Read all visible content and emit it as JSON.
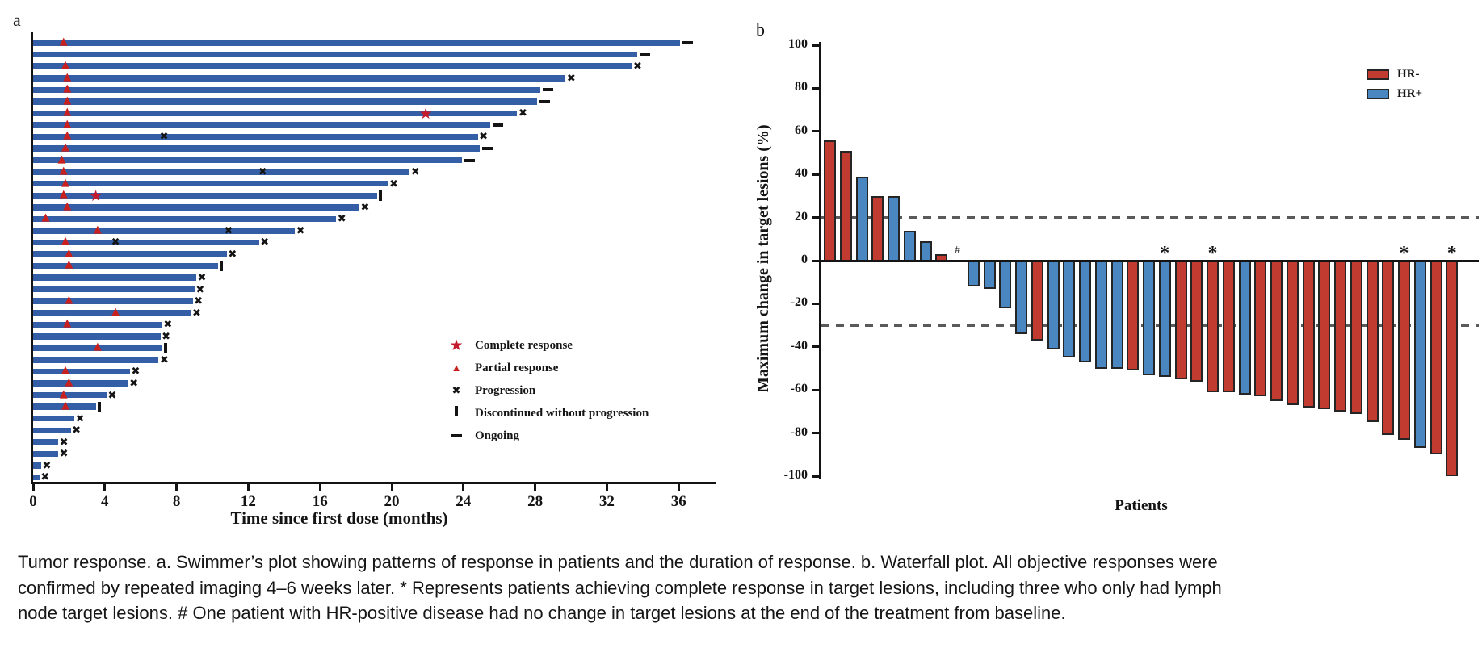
{
  "figure": {
    "panel_a": {
      "label": "a",
      "x_axis": {
        "title": "Time since first dose (months)",
        "ticks": [
          0,
          4,
          8,
          12,
          16,
          20,
          24,
          28,
          32,
          36
        ]
      },
      "legend": [
        {
          "glyph": "star-icon",
          "label": "Complete response"
        },
        {
          "glyph": "triangle-icon",
          "label": "Partial response"
        },
        {
          "glyph": "x-icon",
          "label": "Progression"
        },
        {
          "glyph": "vbar-icon",
          "label": "Discontinued without progression"
        },
        {
          "glyph": "dash-icon",
          "label": "Ongoing"
        }
      ]
    },
    "panel_b": {
      "label": "b",
      "y_axis": {
        "title": "Maximum change in target lesions (%)",
        "ticks": [
          100,
          80,
          60,
          40,
          20,
          0,
          -20,
          -40,
          -60,
          -80,
          -100
        ]
      },
      "x_axis": {
        "title": "Patients"
      },
      "legend": [
        {
          "label": "HR-",
          "color_key": "hr_negative"
        },
        {
          "label": "HR+",
          "color_key": "hr_positive"
        }
      ],
      "annotations": {
        "asterisk": "*",
        "hash": "#"
      }
    },
    "caption_lines": [
      "Tumor response. a. Swimmer’s plot showing patterns of response in patients and the duration of response. b. Waterfall plot. All objective responses were",
      "confirmed by repeated imaging 4–6 weeks later. * Represents patients achieving complete response in target lesions, including three who only had lymph",
      "node target lesions. # One patient with HR-positive disease had no change in target lesions at the end of the treatment from baseline."
    ]
  },
  "colors": {
    "swimmer_bar": "#345ea6",
    "hr_negative": "#c13b30",
    "hr_positive": "#4a87c0",
    "marker_red": "#c8201e",
    "star_red": "#c31a2e",
    "axis_black": "#141414",
    "dashed_gray": "#5a5a5a"
  },
  "chart_data": [
    {
      "type": "bar",
      "subtype": "swimmer",
      "orientation": "horizontal",
      "title": "Swimmer plot of response duration",
      "xlabel": "Time since first dose (months)",
      "xlim": [
        0,
        38
      ],
      "x_ticks": [
        0,
        4,
        8,
        12,
        16,
        20,
        24,
        28,
        32,
        36
      ],
      "marker_legend": [
        "Complete response",
        "Partial response",
        "Progression",
        "Discontinued without progression",
        "Ongoing"
      ],
      "bars": [
        {
          "duration": 36.1,
          "end": "ongoing",
          "pr": 1.7
        },
        {
          "duration": 33.7,
          "end": "ongoing"
        },
        {
          "duration": 33.4,
          "end": "progression",
          "pr": 1.8
        },
        {
          "duration": 29.7,
          "end": "progression",
          "pr": 1.9
        },
        {
          "duration": 28.3,
          "end": "ongoing",
          "pr": 1.9
        },
        {
          "duration": 28.1,
          "end": "ongoing",
          "pr": 1.9
        },
        {
          "duration": 27.0,
          "end": "progression",
          "pr": 1.9,
          "cr": 21.9
        },
        {
          "duration": 25.5,
          "end": "ongoing",
          "pr": 1.9
        },
        {
          "duration": 24.8,
          "end": "progression",
          "pr": 1.9,
          "mid_progression": 7.3
        },
        {
          "duration": 24.9,
          "end": "ongoing",
          "pr": 1.8
        },
        {
          "duration": 23.9,
          "end": "ongoing",
          "pr": 1.6
        },
        {
          "duration": 21.0,
          "end": "progression",
          "pr": 1.7,
          "mid_progression": 12.8
        },
        {
          "duration": 19.8,
          "end": "progression",
          "pr": 1.8
        },
        {
          "duration": 19.2,
          "end": "discontinued",
          "pr": 1.7,
          "cr": 3.5
        },
        {
          "duration": 18.2,
          "end": "progression",
          "pr": 1.9
        },
        {
          "duration": 16.9,
          "end": "progression",
          "pr": 0.7
        },
        {
          "duration": 14.6,
          "end": "progression",
          "pr": 3.6,
          "mid_progression": 10.9
        },
        {
          "duration": 12.6,
          "end": "progression",
          "pr": 1.8,
          "mid_progression": 4.6
        },
        {
          "duration": 10.8,
          "end": "progression",
          "pr": 2.0
        },
        {
          "duration": 10.3,
          "end": "discontinued",
          "pr": 2.0
        },
        {
          "duration": 9.1,
          "end": "progression"
        },
        {
          "duration": 9.0,
          "end": "progression"
        },
        {
          "duration": 8.9,
          "end": "progression",
          "pr": 2.0
        },
        {
          "duration": 8.8,
          "end": "progression",
          "pr": 4.6
        },
        {
          "duration": 7.2,
          "end": "progression",
          "pr": 1.9
        },
        {
          "duration": 7.1,
          "end": "progression"
        },
        {
          "duration": 7.2,
          "end": "discontinued",
          "pr": 3.6
        },
        {
          "duration": 7.0,
          "end": "progression"
        },
        {
          "duration": 5.4,
          "end": "progression",
          "pr": 1.8
        },
        {
          "duration": 5.3,
          "end": "progression",
          "pr": 2.0
        },
        {
          "duration": 4.1,
          "end": "progression",
          "pr": 1.7
        },
        {
          "duration": 3.5,
          "end": "discontinued",
          "pr": 1.8
        },
        {
          "duration": 2.3,
          "end": "progression"
        },
        {
          "duration": 2.1,
          "end": "progression"
        },
        {
          "duration": 1.4,
          "end": "progression"
        },
        {
          "duration": 1.4,
          "end": "progression"
        },
        {
          "duration": 0.45,
          "end": "progression"
        },
        {
          "duration": 0.35,
          "end": "progression"
        }
      ]
    },
    {
      "type": "bar",
      "subtype": "waterfall",
      "title": "Waterfall plot of maximum change in target lesions",
      "xlabel": "Patients",
      "ylabel": "Maximum change in target lesions (%)",
      "ylim": [
        -100,
        100
      ],
      "y_ticks": [
        100,
        80,
        60,
        40,
        20,
        0,
        -20,
        -40,
        -60,
        -80,
        -100
      ],
      "ref_lines": [
        20,
        -30
      ],
      "legend_position": "top-right",
      "group_colors": {
        "HR-": "#c13b30",
        "HR+": "#4a87c0"
      },
      "patients": [
        {
          "value": 56,
          "group": "HR-"
        },
        {
          "value": 51,
          "group": "HR-"
        },
        {
          "value": 39,
          "group": "HR+"
        },
        {
          "value": 30,
          "group": "HR-"
        },
        {
          "value": 30,
          "group": "HR+"
        },
        {
          "value": 14,
          "group": "HR+"
        },
        {
          "value": 9,
          "group": "HR+"
        },
        {
          "value": 3,
          "group": "HR-"
        },
        {
          "value": 0,
          "group": "HR+",
          "mark": "#"
        },
        {
          "value": -12,
          "group": "HR+"
        },
        {
          "value": -13,
          "group": "HR+"
        },
        {
          "value": -22,
          "group": "HR+"
        },
        {
          "value": -34,
          "group": "HR+"
        },
        {
          "value": -37,
          "group": "HR-"
        },
        {
          "value": -41,
          "group": "HR+"
        },
        {
          "value": -45,
          "group": "HR+"
        },
        {
          "value": -47,
          "group": "HR+"
        },
        {
          "value": -50,
          "group": "HR+"
        },
        {
          "value": -50,
          "group": "HR+"
        },
        {
          "value": -51,
          "group": "HR-"
        },
        {
          "value": -53,
          "group": "HR+"
        },
        {
          "value": -54,
          "group": "HR+",
          "mark": "*"
        },
        {
          "value": -55,
          "group": "HR-"
        },
        {
          "value": -56,
          "group": "HR-"
        },
        {
          "value": -61,
          "group": "HR-",
          "mark": "*"
        },
        {
          "value": -61,
          "group": "HR-"
        },
        {
          "value": -62,
          "group": "HR+"
        },
        {
          "value": -63,
          "group": "HR-"
        },
        {
          "value": -65,
          "group": "HR-"
        },
        {
          "value": -67,
          "group": "HR-"
        },
        {
          "value": -68,
          "group": "HR-"
        },
        {
          "value": -69,
          "group": "HR-"
        },
        {
          "value": -70,
          "group": "HR-"
        },
        {
          "value": -71,
          "group": "HR-"
        },
        {
          "value": -75,
          "group": "HR-"
        },
        {
          "value": -81,
          "group": "HR-"
        },
        {
          "value": -83,
          "group": "HR-",
          "mark": "*"
        },
        {
          "value": -87,
          "group": "HR+"
        },
        {
          "value": -90,
          "group": "HR-"
        },
        {
          "value": -100,
          "group": "HR-",
          "mark": "*"
        }
      ]
    }
  ]
}
